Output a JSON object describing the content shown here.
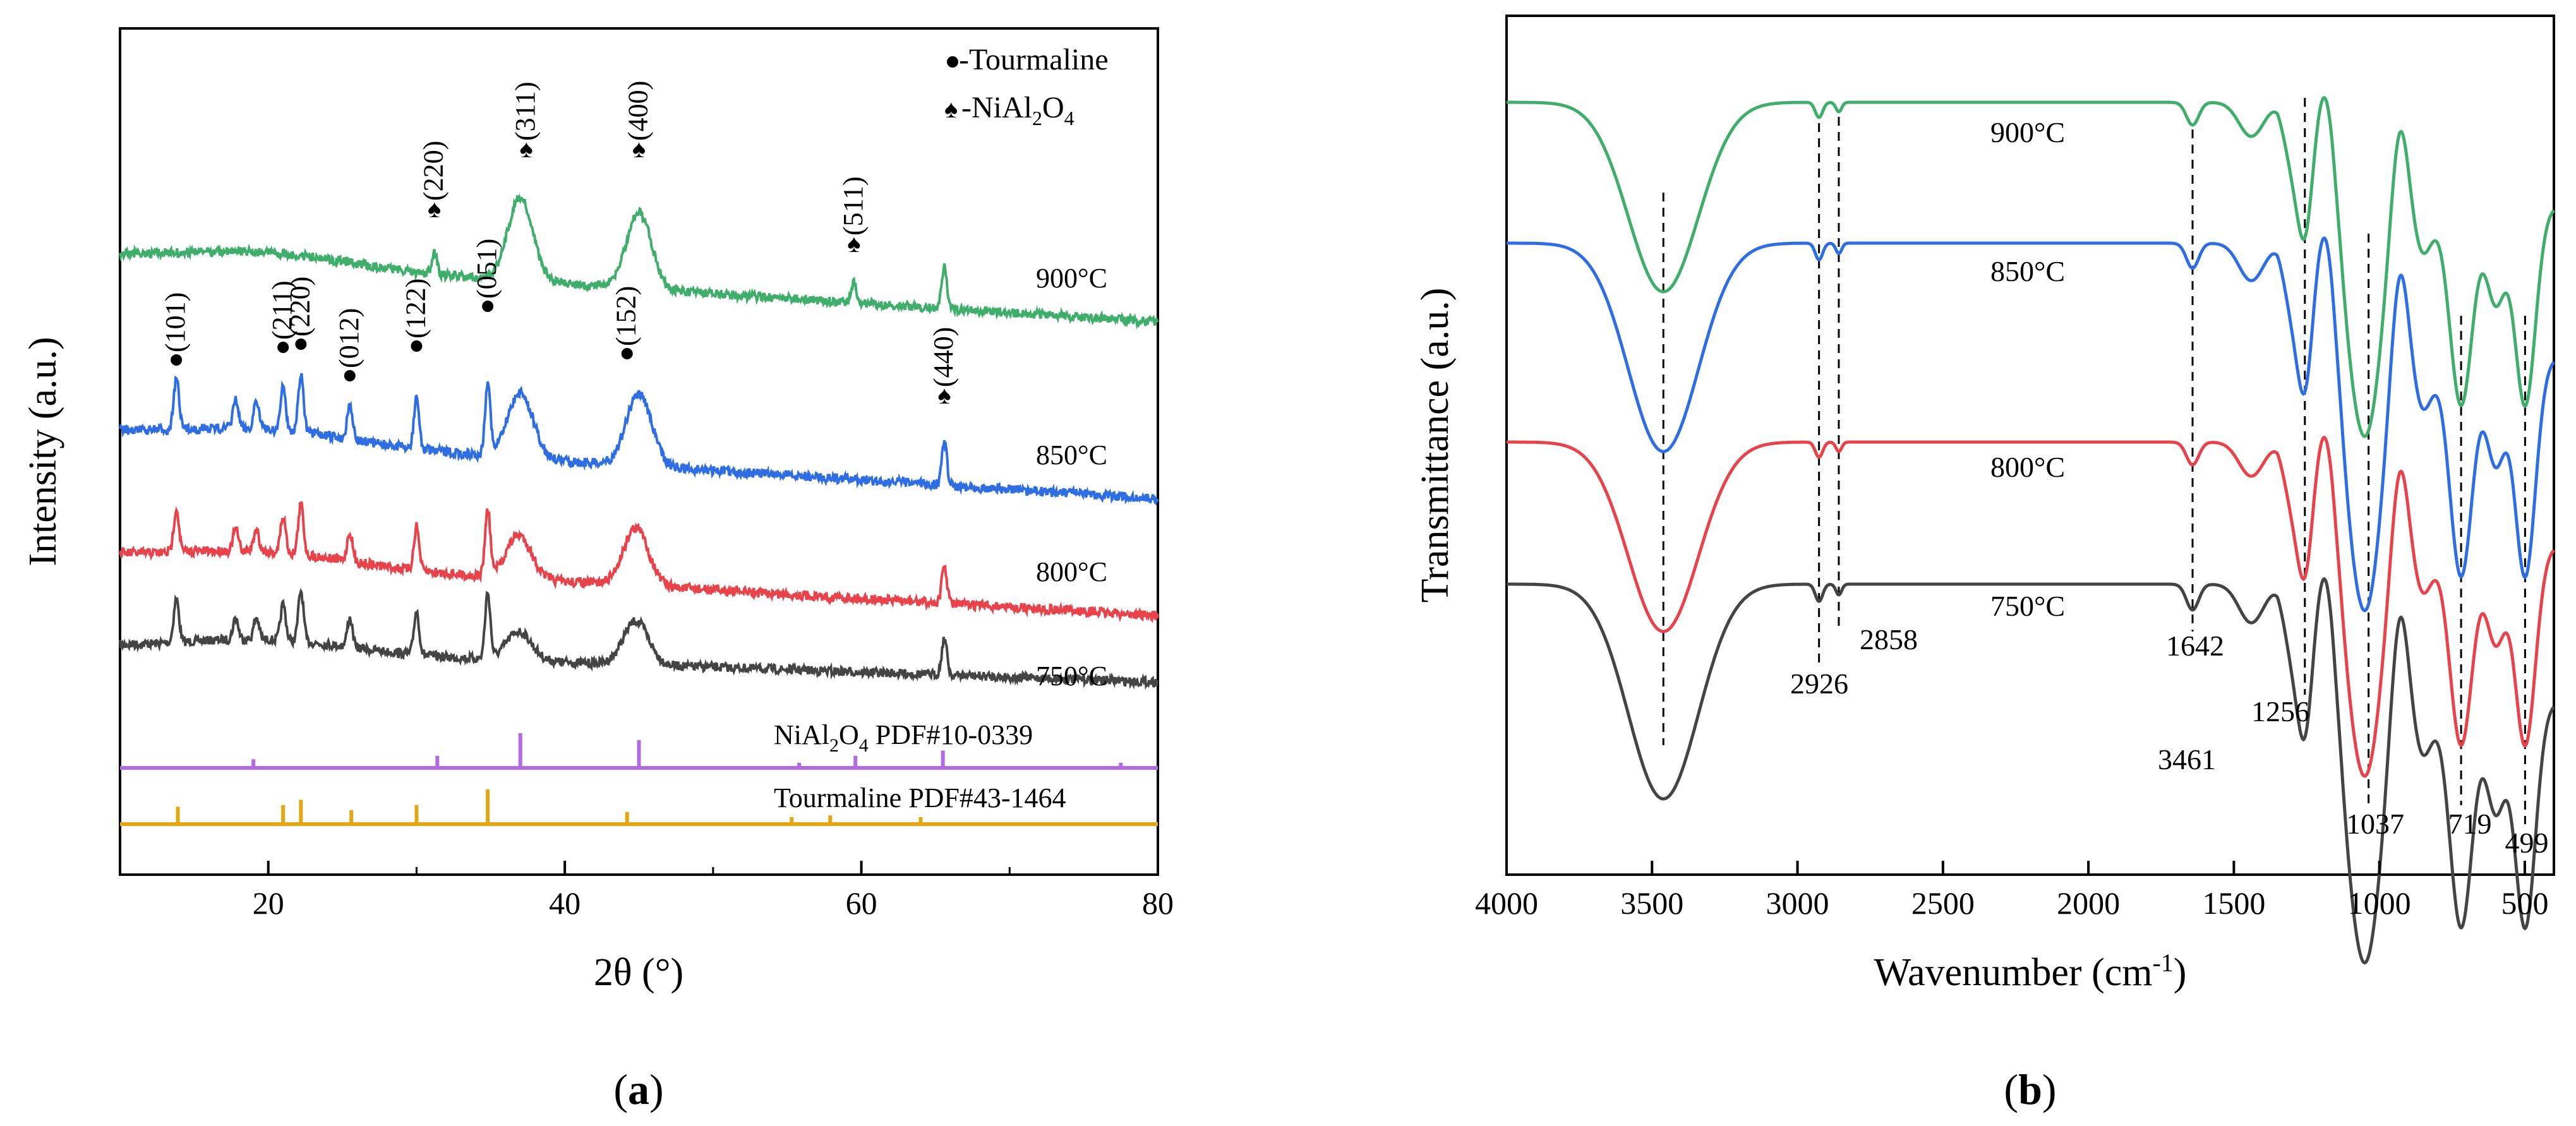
{
  "chart_data": [
    {
      "type": "line",
      "panel_label": "a",
      "xlabel": "2θ (°)",
      "ylabel": "Intensity (a.u.)",
      "xlim": [
        10,
        80
      ],
      "xticks": [
        20,
        40,
        60,
        80
      ],
      "legend": {
        "tourmaline": "-Tourmaline",
        "nial2o4_prefix": "-NiAl",
        "nial2o4_sub1": "2",
        "nial2o4_mid": "O",
        "nial2o4_sub2": "4"
      },
      "series": [
        {
          "name": "750°C",
          "color": "#444444",
          "peaks": [
            [
              13.8,
              0.6
            ],
            [
              17.8,
              0.3
            ],
            [
              19.2,
              0.3
            ],
            [
              21.0,
              0.5
            ],
            [
              22.2,
              0.7
            ],
            [
              25.5,
              0.4
            ],
            [
              30.0,
              0.6
            ],
            [
              34.8,
              0.9
            ],
            [
              36.9,
              0.4
            ],
            [
              44.8,
              0.6
            ],
            [
              65.6,
              0.5
            ]
          ]
        },
        {
          "name": "800°C",
          "color": "#e8424a",
          "peaks": [
            [
              13.8,
              0.6
            ],
            [
              17.8,
              0.3
            ],
            [
              19.2,
              0.3
            ],
            [
              21.0,
              0.5
            ],
            [
              22.2,
              0.7
            ],
            [
              25.5,
              0.4
            ],
            [
              30.0,
              0.6
            ],
            [
              34.8,
              0.9
            ],
            [
              36.9,
              0.6
            ],
            [
              44.8,
              0.8
            ],
            [
              65.6,
              0.5
            ]
          ]
        },
        {
          "name": "850°C",
          "color": "#2f6ee2",
          "peaks": [
            [
              13.8,
              0.7
            ],
            [
              17.8,
              0.4
            ],
            [
              19.2,
              0.4
            ],
            [
              21.0,
              0.6
            ],
            [
              22.2,
              0.8
            ],
            [
              25.5,
              0.5
            ],
            [
              30.0,
              0.7
            ],
            [
              34.8,
              1.0
            ],
            [
              37.0,
              0.9
            ],
            [
              45.0,
              1.0
            ],
            [
              65.6,
              0.6
            ]
          ]
        },
        {
          "name": "900°C",
          "color": "#3fae6b",
          "peaks": [
            [
              31.2,
              0.3
            ],
            [
              37.0,
              1.2
            ],
            [
              45.0,
              1.1
            ],
            [
              59.5,
              0.3
            ],
            [
              65.6,
              0.6
            ]
          ]
        }
      ],
      "reference_patterns": [
        {
          "name": "NiAl2O4 PDF#10-0339",
          "label_prefix": "NiAl",
          "label_sub1": "2",
          "label_mid": "O",
          "label_sub2": "4",
          "label_suffix": " PDF#10-0339",
          "color": "#b36ae2",
          "lines": [
            [
              19.0,
              0.25
            ],
            [
              31.4,
              0.35
            ],
            [
              37.0,
              1.0
            ],
            [
              45.0,
              0.8
            ],
            [
              55.8,
              0.15
            ],
            [
              59.6,
              0.35
            ],
            [
              65.5,
              0.5
            ],
            [
              77.5,
              0.15
            ]
          ]
        },
        {
          "name": "Tourmaline PDF#43-1464",
          "label": "Tourmaline PDF#43-1464",
          "color": "#e2a712",
          "lines": [
            [
              13.9,
              0.5
            ],
            [
              21.0,
              0.55
            ],
            [
              22.2,
              0.7
            ],
            [
              25.6,
              0.4
            ],
            [
              30.0,
              0.55
            ],
            [
              34.8,
              1.0
            ],
            [
              44.2,
              0.35
            ],
            [
              55.3,
              0.2
            ],
            [
              57.9,
              0.25
            ],
            [
              64.0,
              0.2
            ]
          ]
        }
      ],
      "annotations": [
        {
          "text": "(101)",
          "x": 13.8,
          "marker": "●"
        },
        {
          "text": "(211)",
          "x": 21.0,
          "marker": "●"
        },
        {
          "text": "(220)",
          "x": 22.2,
          "marker": "●"
        },
        {
          "text": "(012)",
          "x": 25.5,
          "marker": "●"
        },
        {
          "text": "(122)",
          "x": 30.0,
          "marker": "●"
        },
        {
          "text": "(051)",
          "x": 34.8,
          "marker": "●"
        },
        {
          "text": "(152)",
          "x": 44.2,
          "marker": "●"
        },
        {
          "text": "(440)",
          "x": 65.6,
          "marker": "♠"
        },
        {
          "text": "(220)",
          "x": 31.2,
          "marker": "♠"
        },
        {
          "text": "(311)",
          "x": 37.4,
          "marker": "♠"
        },
        {
          "text": "(400)",
          "x": 45.0,
          "marker": "♠"
        },
        {
          "text": "(511)",
          "x": 59.5,
          "marker": "♠"
        }
      ]
    },
    {
      "type": "line",
      "panel_label": "b",
      "xlabel_prefix": "Wavenumber (cm",
      "xlabel_sup": "-1",
      "xlabel_suffix": ")",
      "ylabel": "Transmittance (a.u.)",
      "xlim": [
        4000,
        400
      ],
      "xticks": [
        4000,
        3500,
        3000,
        2500,
        2000,
        1500,
        1000,
        500
      ],
      "series": [
        {
          "name": "750°C",
          "color": "#444444"
        },
        {
          "name": "800°C",
          "color": "#e8424a"
        },
        {
          "name": "850°C",
          "color": "#2f6ee2"
        },
        {
          "name": "900°C",
          "color": "#3fae6b"
        }
      ],
      "band_labels": [
        "3461",
        "2926",
        "2858",
        "1642",
        "1256",
        "1037",
        "719",
        "499"
      ],
      "bands": [
        3461,
        2926,
        2858,
        1642,
        1256,
        1037,
        719,
        499
      ]
    }
  ],
  "panel_labels": {
    "a_open": "(",
    "a": "a",
    "a_close": ")",
    "b_open": "(",
    "b": "b",
    "b_close": ")"
  }
}
